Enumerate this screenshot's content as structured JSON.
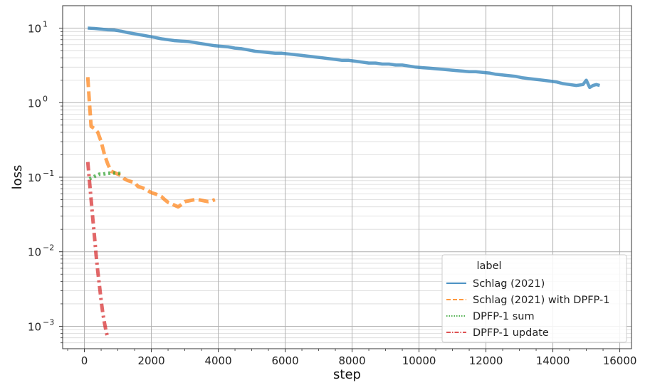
{
  "chart_data": {
    "type": "line",
    "xlabel": "step",
    "ylabel": "loss",
    "yscale": "log",
    "xlim": [
      -650,
      16350
    ],
    "ylim": [
      0.0005,
      20
    ],
    "grid": true,
    "legend": {
      "placement": "bottom-right",
      "title": "label"
    },
    "x_ticks": [
      {
        "value": 0,
        "label": "0"
      },
      {
        "value": 2000,
        "label": "2000"
      },
      {
        "value": 4000,
        "label": "4000"
      },
      {
        "value": 6000,
        "label": "6000"
      },
      {
        "value": 8000,
        "label": "8000"
      },
      {
        "value": 10000,
        "label": "10000"
      },
      {
        "value": 12000,
        "label": "12000"
      },
      {
        "value": 14000,
        "label": "14000"
      },
      {
        "value": 16000,
        "label": "16000"
      }
    ],
    "y_ticks": [
      {
        "value": 0.001,
        "base": "10",
        "exp": "−3"
      },
      {
        "value": 0.01,
        "base": "10",
        "exp": "−2"
      },
      {
        "value": 0.1,
        "base": "10",
        "exp": "−1"
      },
      {
        "value": 1,
        "base": "10",
        "exp": "0"
      },
      {
        "value": 10,
        "base": "10",
        "exp": "1"
      }
    ],
    "series": [
      {
        "name": "Schlag (2021)",
        "color": "#1f77b4",
        "dash": "solid",
        "x": [
          100,
          300,
          500,
          700,
          900,
          1100,
          1300,
          1500,
          1700,
          1900,
          2100,
          2300,
          2500,
          2700,
          2900,
          3100,
          3300,
          3500,
          3700,
          3900,
          4100,
          4300,
          4500,
          4700,
          4900,
          5100,
          5300,
          5500,
          5700,
          5900,
          6100,
          6300,
          6500,
          6700,
          6900,
          7100,
          7300,
          7500,
          7700,
          7900,
          8100,
          8300,
          8500,
          8700,
          8900,
          9100,
          9300,
          9500,
          9700,
          9900,
          10100,
          10300,
          10500,
          10700,
          10900,
          11100,
          11300,
          11500,
          11700,
          11900,
          12100,
          12300,
          12500,
          12700,
          12900,
          13100,
          13300,
          13500,
          13700,
          13900,
          14100,
          14300,
          14500,
          14700,
          14900,
          15000,
          15100,
          15200,
          15300,
          15400
        ],
        "y": [
          10.0,
          9.9,
          9.7,
          9.5,
          9.4,
          9.1,
          8.7,
          8.4,
          8.1,
          7.8,
          7.5,
          7.2,
          7.0,
          6.8,
          6.7,
          6.6,
          6.4,
          6.2,
          6.0,
          5.8,
          5.7,
          5.6,
          5.4,
          5.3,
          5.1,
          4.9,
          4.8,
          4.7,
          4.6,
          4.6,
          4.5,
          4.4,
          4.3,
          4.2,
          4.1,
          4.0,
          3.9,
          3.8,
          3.7,
          3.7,
          3.6,
          3.5,
          3.4,
          3.4,
          3.3,
          3.3,
          3.2,
          3.2,
          3.1,
          3.0,
          2.95,
          2.9,
          2.85,
          2.8,
          2.75,
          2.7,
          2.65,
          2.6,
          2.6,
          2.55,
          2.5,
          2.4,
          2.35,
          2.3,
          2.25,
          2.15,
          2.1,
          2.05,
          2.0,
          1.95,
          1.9,
          1.8,
          1.75,
          1.7,
          1.75,
          2.0,
          1.6,
          1.7,
          1.75,
          1.7
        ]
      },
      {
        "name": "Schlag (2021) with DPFP-1",
        "color": "#ff7f0e",
        "dash": "dashed",
        "x": [
          100,
          150,
          200,
          300,
          400,
          500,
          600,
          700,
          800,
          900,
          1000,
          1100,
          1200,
          1300,
          1400,
          1500,
          1600,
          1700,
          1800,
          1900,
          2000,
          2100,
          2200,
          2300,
          2400,
          2500,
          2600,
          2700,
          2800,
          2900,
          3000,
          3100,
          3200,
          3300,
          3400,
          3500,
          3600,
          3700,
          3800,
          3900
        ],
        "y": [
          2.2,
          1.0,
          0.48,
          0.45,
          0.4,
          0.3,
          0.2,
          0.15,
          0.12,
          0.115,
          0.11,
          0.105,
          0.095,
          0.09,
          0.087,
          0.085,
          0.075,
          0.073,
          0.07,
          0.066,
          0.062,
          0.06,
          0.058,
          0.055,
          0.05,
          0.046,
          0.044,
          0.042,
          0.04,
          0.043,
          0.047,
          0.048,
          0.049,
          0.05,
          0.05,
          0.049,
          0.048,
          0.047,
          0.048,
          0.05
        ]
      },
      {
        "name": "DPFP-1 sum",
        "color": "#2ca02c",
        "dash": "dotted",
        "x": [
          150,
          250,
          350,
          450,
          550,
          650,
          750,
          850,
          950,
          1050,
          1150
        ],
        "y": [
          0.095,
          0.1,
          0.105,
          0.11,
          0.11,
          0.112,
          0.113,
          0.114,
          0.113,
          0.112,
          0.11
        ]
      },
      {
        "name": "DPFP-1 update",
        "color": "#d62728",
        "dash": "dashdot",
        "x": [
          100,
          150,
          200,
          250,
          300,
          350,
          400,
          450,
          500,
          550,
          600,
          650,
          700
        ],
        "y": [
          0.16,
          0.09,
          0.05,
          0.028,
          0.016,
          0.009,
          0.0055,
          0.0035,
          0.0022,
          0.0015,
          0.0011,
          0.00085,
          0.0007
        ]
      }
    ]
  }
}
